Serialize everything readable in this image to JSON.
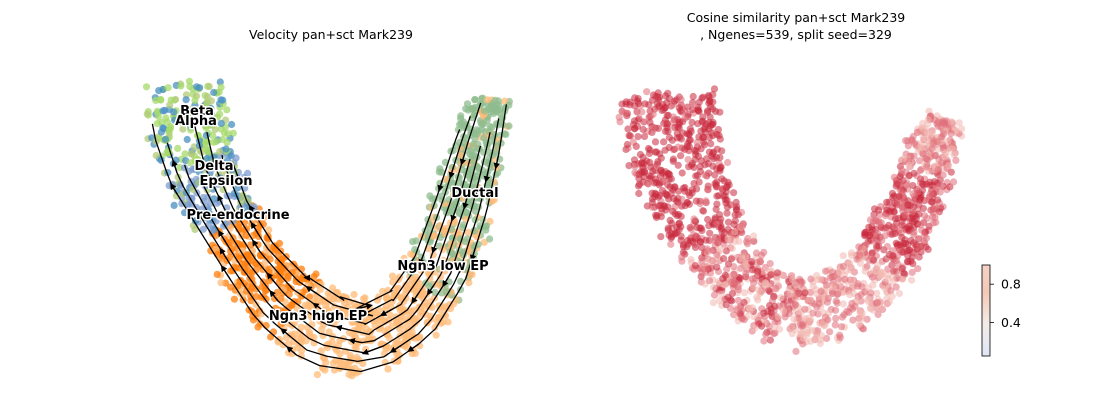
{
  "chart_data": [
    {
      "type": "scatter",
      "title": "Velocity pan+sct Mark239",
      "overlay": "velocity streamlines with arrowheads",
      "axes_visible": false,
      "grid": false,
      "clusters": [
        {
          "name": "Beta",
          "color": "#a6d96a"
        },
        {
          "name": "Alpha",
          "color": "#4a90c2"
        },
        {
          "name": "Delta",
          "color": "#7f9fd0"
        },
        {
          "name": "Epsilon",
          "color": "#b3c97a"
        },
        {
          "name": "Pre-endocrine",
          "color": "#ff7f0e"
        },
        {
          "name": "Ngn3 high EP",
          "color": "#ffbb78"
        },
        {
          "name": "Ngn3 low EP",
          "color": "#ffbb78"
        },
        {
          "name": "Ductal",
          "color": "#8fbc8f"
        }
      ],
      "stream_color": "#000000"
    },
    {
      "type": "scatter",
      "title_lines": [
        "Cosine similarity pan+sct Mark239",
        ", Ngenes=539, split seed=329"
      ],
      "axes_visible": false,
      "grid": false,
      "colorbar": {
        "ticks": [
          "0.8",
          "0.4"
        ],
        "tick_values": [
          0.8,
          0.4
        ],
        "range": [
          0.05,
          1.0
        ],
        "colormap": "coolwarm-upper"
      },
      "point_colors": {
        "high": "#c8283c",
        "mid": "#e0707a",
        "low": "#f2b8b0"
      }
    }
  ]
}
